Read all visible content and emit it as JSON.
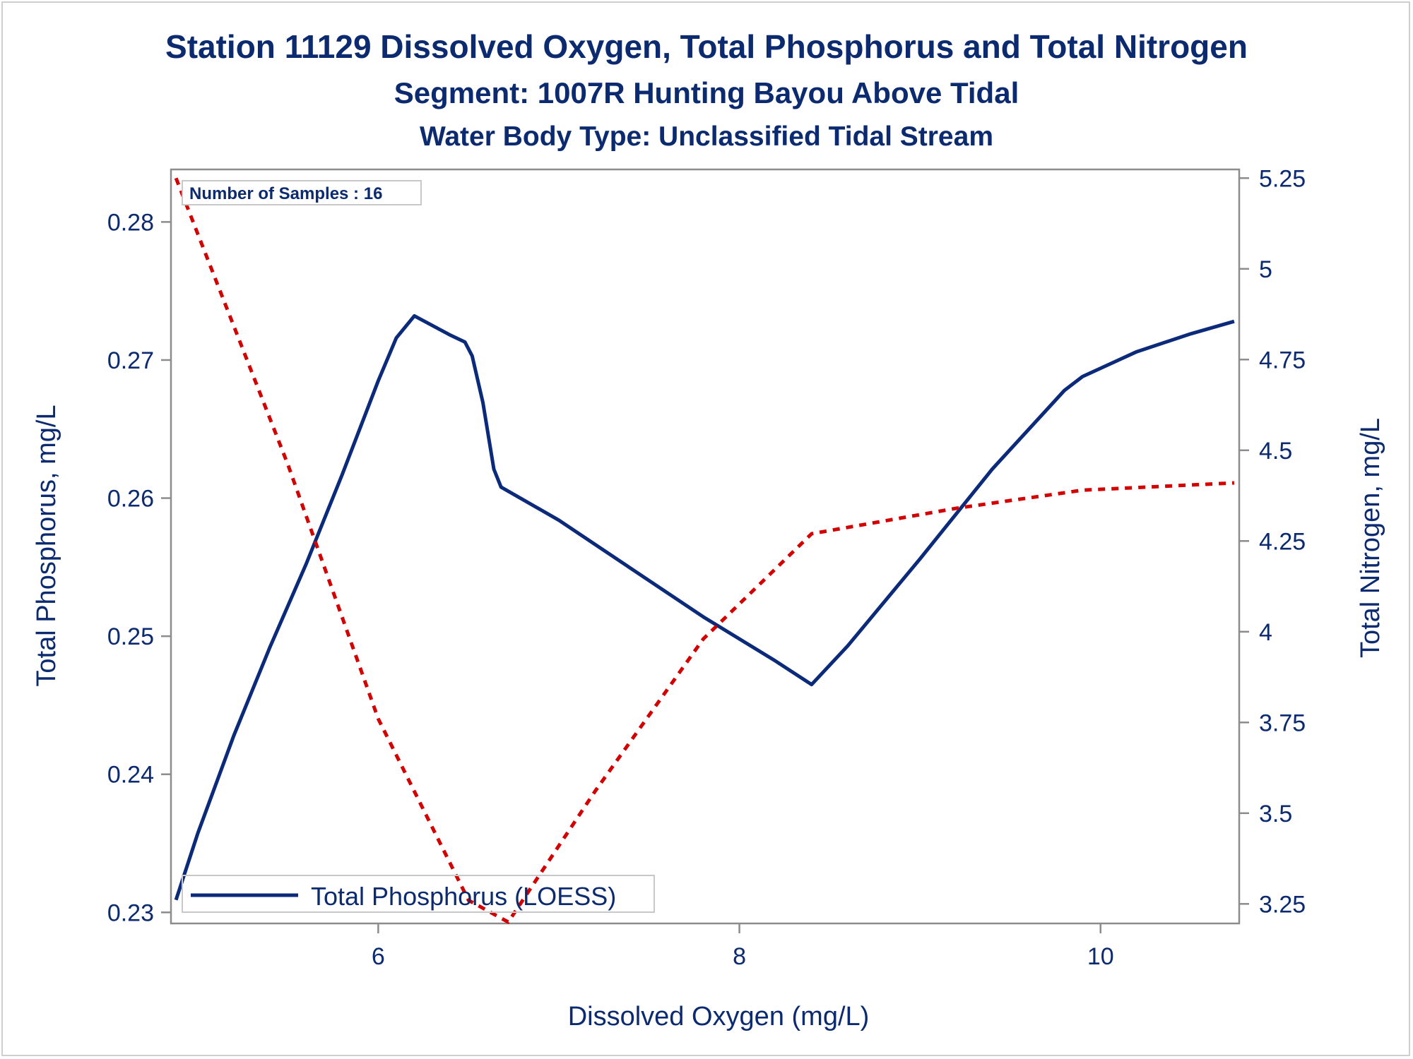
{
  "chart_data": {
    "type": "line",
    "title": "Station 11129  Dissolved Oxygen, Total Phosphorus and Total Nitrogen",
    "subtitle": "Segment: 1007R  Hunting Bayou Above Tidal",
    "subtitle2": "Water Body Type: Unclassified Tidal Stream",
    "xlabel": "Dissolved Oxygen (mg/L)",
    "ylabel": "Total Phosphorus, mg/L",
    "y2label": "Total Nitrogen, mg/L",
    "annotation": "Number of Samples : 16",
    "xlim": [
      4.86,
      10.76
    ],
    "ylim": [
      0.2293,
      0.2837
    ],
    "y2lim": [
      3.2,
      5.27
    ],
    "xticks": [
      "6",
      "8",
      "10"
    ],
    "xtick_values": [
      6,
      8,
      10
    ],
    "yticks": [
      "0.23",
      "0.24",
      "0.25",
      "0.26",
      "0.27",
      "0.28"
    ],
    "ytick_values": [
      0.23,
      0.24,
      0.25,
      0.26,
      0.27,
      0.28
    ],
    "y2ticks": [
      "3.25",
      "3.5",
      "3.75",
      "4",
      "4.25",
      "4.5",
      "4.75",
      "5",
      "5.25"
    ],
    "y2tick_values": [
      3.25,
      3.5,
      3.75,
      4,
      4.25,
      4.5,
      4.75,
      5,
      5.25
    ],
    "grid": false,
    "legend_position": "bottom-left",
    "series": [
      {
        "name": "Total Phosphorus (LOESS)",
        "axis": "left",
        "color": "#0b2a7a",
        "style": "solid",
        "x": [
          4.88,
          5.0,
          5.2,
          5.4,
          5.6,
          5.8,
          6.0,
          6.1,
          6.2,
          6.4,
          6.48,
          6.52,
          6.58,
          6.64,
          6.68,
          7.0,
          7.4,
          7.8,
          8.2,
          8.4,
          8.6,
          9.0,
          9.4,
          9.8,
          9.9,
          10.2,
          10.5,
          10.74
        ],
        "y": [
          0.2309,
          0.2357,
          0.2428,
          0.2492,
          0.2552,
          0.2617,
          0.2685,
          0.2716,
          0.2732,
          0.2718,
          0.2713,
          0.2703,
          0.2669,
          0.2621,
          0.2608,
          0.2584,
          0.2549,
          0.2514,
          0.2482,
          0.2465,
          0.2493,
          0.2556,
          0.2621,
          0.2678,
          0.2688,
          0.2706,
          0.2719,
          0.2728
        ]
      },
      {
        "name": "Total Nitrogen",
        "axis": "right",
        "color": "#d20000",
        "style": "dashed",
        "x": [
          4.88,
          5.5,
          6.0,
          6.5,
          6.72,
          7.2,
          7.8,
          8.4,
          9.2,
          9.9,
          10.74
        ],
        "y": [
          5.25,
          4.46,
          3.76,
          3.26,
          3.2,
          3.56,
          3.98,
          4.27,
          4.34,
          4.39,
          4.41
        ]
      }
    ],
    "legend": [
      "Total Phosphorus (LOESS)"
    ],
    "colors": {
      "text": "#0b2a6f",
      "axis": "#8c8c8c",
      "phosphorus": "#0b2a7a",
      "nitrogen": "#d20000"
    }
  }
}
